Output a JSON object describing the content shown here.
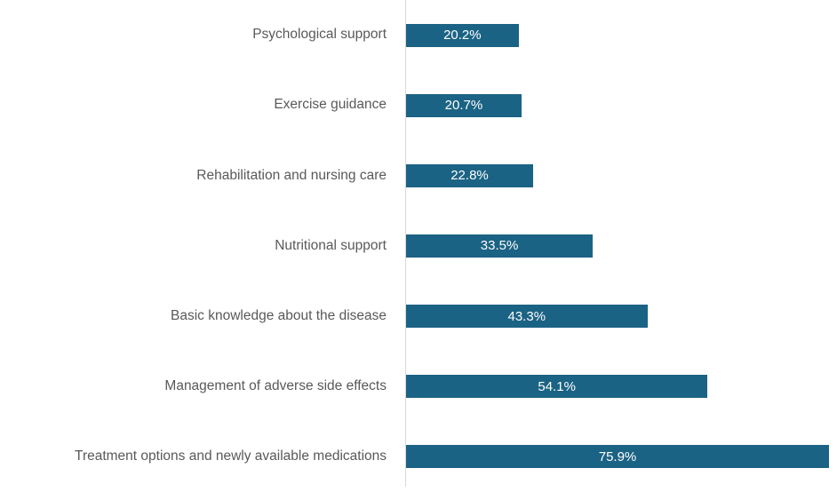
{
  "chart_data": {
    "type": "bar",
    "orientation": "horizontal",
    "title": "",
    "xlabel": "",
    "ylabel": "",
    "grid": "off",
    "legend": "none",
    "xlim": [
      0,
      77.4
    ],
    "categories": [
      "Psychological support",
      "Exercise guidance",
      "Rehabilitation and nursing care",
      "Nutritional support",
      "Basic knowledge about the disease",
      "Management of adverse side effects",
      "Treatment options and newly available medications"
    ],
    "values": [
      20.2,
      20.7,
      22.8,
      33.5,
      43.3,
      54.1,
      75.9
    ],
    "value_labels": [
      "20.2%",
      "20.7%",
      "22.8%",
      "33.5%",
      "43.3%",
      "54.1%",
      "75.9%"
    ],
    "colors": {
      "bar": "#1B6384",
      "value_label": "#FFFFFF",
      "category_label": "#595959",
      "axis_line": "#D9D9D9",
      "background": "#FFFFFF"
    }
  }
}
